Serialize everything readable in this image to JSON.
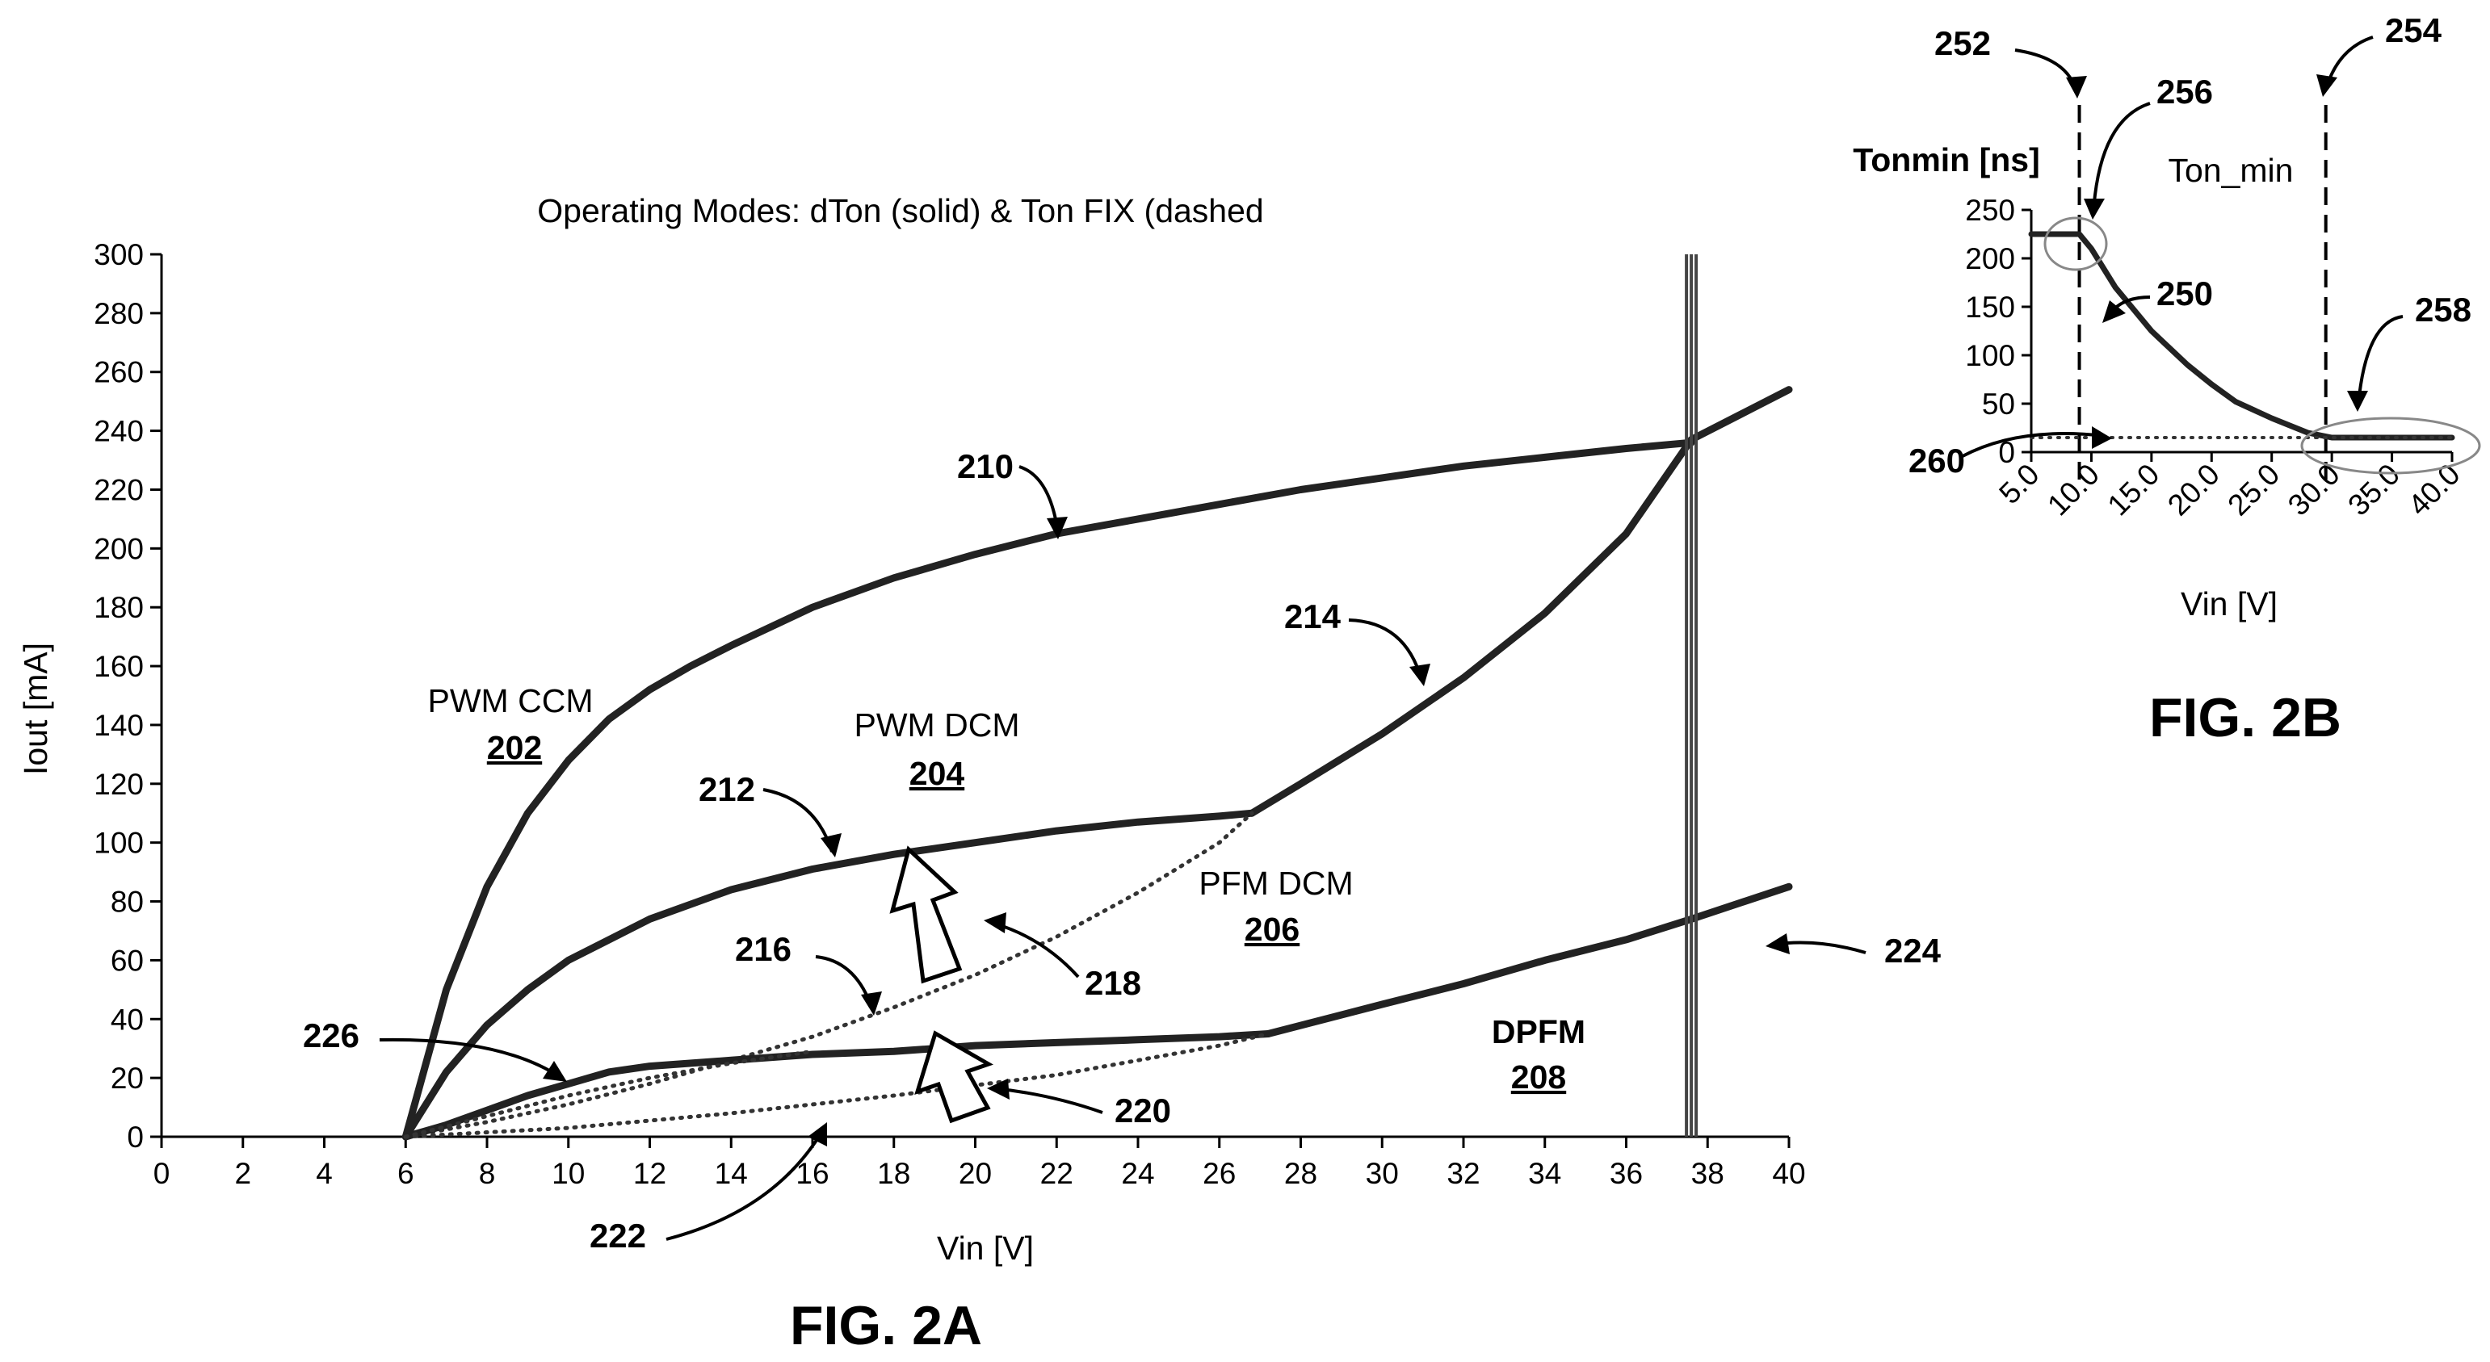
{
  "chart_data": [
    {
      "type": "line",
      "title": "Operating Modes: dTon (solid) & Ton FIX (dashed",
      "xlabel": "Vin [V]",
      "ylabel": "Iout [mA]",
      "xlim": [
        0,
        40
      ],
      "ylim": [
        0,
        300
      ],
      "xticks": [
        "0",
        "2",
        "4",
        "6",
        "8",
        "10",
        "12",
        "14",
        "16",
        "18",
        "20",
        "22",
        "24",
        "26",
        "28",
        "30",
        "32",
        "34",
        "36",
        "38",
        "40"
      ],
      "yticks": [
        "0",
        "20",
        "40",
        "60",
        "80",
        "100",
        "120",
        "140",
        "160",
        "180",
        "200",
        "220",
        "240",
        "260",
        "280",
        "300"
      ],
      "grid": false,
      "figure_label": "FIG. 2A",
      "series": [
        {
          "ref": "210",
          "style": "solid",
          "x": [
            6,
            7,
            8,
            9,
            10,
            11,
            12,
            13,
            14,
            16,
            18,
            20,
            22,
            24,
            26,
            28,
            30,
            32,
            34,
            36,
            37.6
          ],
          "y": [
            0,
            50,
            85,
            110,
            128,
            142,
            152,
            160,
            167,
            180,
            190,
            198,
            205,
            210,
            215,
            220,
            224,
            228,
            231,
            234,
            236
          ]
        },
        {
          "ref": "212",
          "style": "solid",
          "x": [
            6,
            7,
            8,
            9,
            10,
            12,
            14,
            16,
            18,
            20,
            22,
            24,
            26,
            26.8
          ],
          "y": [
            0,
            22,
            38,
            50,
            60,
            74,
            84,
            91,
            96,
            100,
            104,
            107,
            109,
            110
          ]
        },
        {
          "ref": "214",
          "style": "solid",
          "x": [
            26.8,
            28,
            30,
            32,
            34,
            36,
            37.6,
            40
          ],
          "y": [
            110,
            120,
            137,
            156,
            178,
            205,
            237,
            254
          ]
        },
        {
          "ref": "216",
          "style": "dotted",
          "x": [
            6,
            8,
            10,
            12,
            14,
            16,
            18,
            20,
            22,
            24,
            26,
            26.8
          ],
          "y": [
            0,
            5,
            11,
            18,
            26,
            34,
            44,
            55,
            68,
            83,
            100,
            110
          ]
        },
        {
          "ref": "226",
          "style": "solid",
          "x": [
            6,
            7,
            8,
            9,
            10,
            11,
            12,
            14,
            16,
            18,
            20,
            22,
            24,
            26,
            27.2
          ],
          "y": [
            0,
            4,
            9,
            14,
            18,
            22,
            24,
            26,
            28,
            29,
            31,
            32,
            33,
            34,
            35
          ]
        },
        {
          "ref": "224",
          "style": "solid",
          "x": [
            27.2,
            30,
            32,
            34,
            36,
            37.6,
            40
          ],
          "y": [
            35,
            45,
            52,
            60,
            67,
            74,
            85
          ]
        },
        {
          "ref": "222",
          "style": "dotted",
          "x": [
            6,
            10,
            14,
            18,
            22,
            26,
            27.2
          ],
          "y": [
            0,
            3,
            8,
            14,
            21,
            31,
            35
          ]
        },
        {
          "ref": "dotted-226",
          "style": "dotted",
          "x": [
            6,
            8,
            10,
            12,
            14,
            16
          ],
          "y": [
            0,
            7,
            14,
            20,
            25,
            29
          ]
        }
      ],
      "vertical_marker_x": 37.6,
      "region_labels": [
        {
          "name": "PWM CCM",
          "ref": "202"
        },
        {
          "name": "PWM DCM",
          "ref": "204"
        },
        {
          "name": "PFM DCM",
          "ref": "206"
        },
        {
          "name": "DPFM",
          "ref": "208"
        }
      ],
      "reference_numerals": [
        "210",
        "212",
        "214",
        "216",
        "218",
        "220",
        "222",
        "224",
        "226"
      ]
    },
    {
      "type": "line",
      "title": "Ton_min",
      "xlabel": "Vin [V]",
      "ylabel": "Tonmin [ns]",
      "xlim": [
        5,
        40
      ],
      "ylim": [
        0,
        250
      ],
      "xticks": [
        "5.0",
        "10.0",
        "15.0",
        "20.0",
        "25.0",
        "30.0",
        "35.0",
        "40.0"
      ],
      "yticks": [
        "0",
        "50",
        "100",
        "150",
        "200",
        "250"
      ],
      "grid": false,
      "figure_label": "FIG. 2B",
      "series": [
        {
          "ref": "250",
          "style": "solid",
          "x": [
            5,
            5.5,
            9,
            10,
            12,
            15,
            18,
            20,
            22,
            25,
            28,
            30,
            35,
            40
          ],
          "y": [
            225,
            225,
            225,
            210,
            170,
            125,
            90,
            70,
            52,
            35,
            20,
            15,
            15,
            15
          ]
        },
        {
          "ref": "260",
          "style": "dotted",
          "x": [
            5,
            40
          ],
          "y": [
            15,
            15
          ]
        }
      ],
      "vertical_markers": [
        {
          "ref": "252",
          "x": 9
        },
        {
          "ref": "254",
          "x": 29.5
        }
      ],
      "reference_numerals": [
        "250",
        "252",
        "254",
        "256",
        "258",
        "260"
      ]
    }
  ]
}
